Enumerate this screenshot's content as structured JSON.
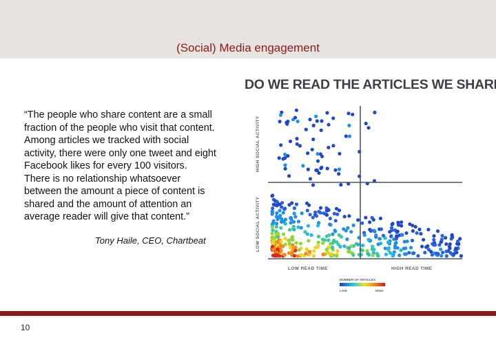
{
  "slide": {
    "title": "(Social) Media engagement",
    "quote_lines": [
      "“The people who share content are a small",
      "fraction of the people who visit that content.",
      "Among articles we tracked with social",
      "activity, there were only one tweet and eight",
      "Facebook likes for every 100 visitors.",
      "There is no relationship whatsoever",
      "between the amount a piece of content is",
      "shared and the amount of attention an",
      "average reader will give that content.”"
    ],
    "attribution": "Tony Haile, CEO, Chartbeat",
    "page_number": "10"
  },
  "chart_data": {
    "type": "scatter",
    "title": "DO WE READ THE ARTICLES WE SHARE?",
    "xlabel_low": "LOW READ TIME",
    "xlabel_high": "HIGH READ TIME",
    "ylabel_low": "LOW SOCIAL ACTIVITY",
    "ylabel_high": "HIGH SOCIAL ACTIVITY",
    "legend": {
      "title": "NUMBER OF ARTICLES",
      "low": "LOW",
      "high": "HIGH"
    },
    "colors": {
      "axes": "#4a5563",
      "text": "#5a6270",
      "low": "#1f4fd0",
      "high": "#d42a1f"
    },
    "points_description": "Density scatter of articles; dense cloud at low read time and low social activity, sparse high-social outliers."
  }
}
